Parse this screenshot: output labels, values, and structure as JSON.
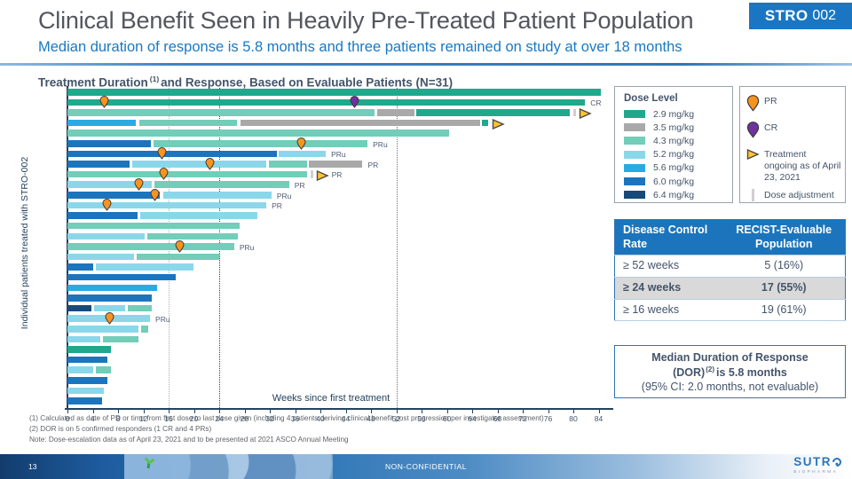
{
  "slide": {
    "title": "Clinical Benefit Seen in Heavily Pre-Treated Patient Population",
    "subtitle": "Median duration of response is 5.8 months and three patients remained on study at over 18 months",
    "badge": {
      "brand": "STRO",
      "number": "002"
    }
  },
  "chart_data": {
    "type": "bar",
    "subtype": "horizontal-swimmer-plot",
    "title_prefix": "Treatment Duration",
    "title_sup": "(1)",
    "title_suffix": "and Response, Based on Evaluable Patients (N=31)",
    "xlabel": "Weeks since first treatment",
    "ylabel": "Individual patients treated with STRO-002",
    "xlim": [
      0,
      86
    ],
    "x_ticks": [
      0,
      4,
      8,
      12,
      16,
      20,
      24,
      28,
      32,
      36,
      40,
      44,
      48,
      52,
      56,
      60,
      64,
      68,
      72,
      76,
      80,
      84
    ],
    "gridlines": [
      {
        "week": 16,
        "emphasis": "light"
      },
      {
        "week": 24,
        "emphasis": "dark"
      },
      {
        "week": 52,
        "emphasis": "mid"
      }
    ],
    "dose_colors": {
      "2.9": "#21a88c",
      "3.5": "#a9a9a9",
      "4.3": "#72cdb9",
      "5.2": "#8bd7ea",
      "5.6": "#29abe2",
      "6.0": "#1c75bc",
      "6.4": "#17497b"
    },
    "marker_colors": {
      "PR": "#f7941d",
      "CR": "#7030a0",
      "ongoing": "#ffc52f",
      "adjustment": "#d0cece"
    },
    "dose_levels": [
      {
        "dose": "2.9",
        "label": "2.9 mg/kg"
      },
      {
        "dose": "3.5",
        "label": "3.5 mg/kg"
      },
      {
        "dose": "4.3",
        "label": "4.3 mg/kg"
      },
      {
        "dose": "5.2",
        "label": "5.2 mg/kg"
      },
      {
        "dose": "5.6",
        "label": "5.6 mg/kg"
      },
      {
        "dose": "6.0",
        "label": "6.0 mg/kg"
      },
      {
        "dose": "6.4",
        "label": "6.4 mg/kg"
      }
    ],
    "legend_title": "Dose Level",
    "marker_legend": {
      "pr_label": "PR",
      "cr_label": "CR",
      "ongoing_label": "Treatment ongoing as of April 23, 2021",
      "adjustment_label": "Dose adjustment"
    },
    "patients": [
      {
        "segments": [
          {
            "dose": "2.9",
            "start": 0,
            "end": 84.5
          }
        ]
      },
      {
        "segments": [
          {
            "dose": "2.9",
            "start": 0,
            "end": 82
          }
        ],
        "markers": [
          {
            "type": "PR",
            "week": 5.8
          },
          {
            "type": "CR",
            "week": 45.4
          }
        ],
        "label": "CR"
      },
      {
        "segments": [
          {
            "dose": "4.3",
            "start": 0,
            "end": 48.7
          },
          {
            "dose": "3.5",
            "start": 49,
            "end": 55
          },
          {
            "dose": "2.9",
            "start": 55.2,
            "end": 79.6
          }
        ],
        "adjustments": [
          80
        ],
        "ongoing": true
      },
      {
        "segments": [
          {
            "dose": "5.6",
            "start": 0,
            "end": 11
          },
          {
            "dose": "4.3",
            "start": 11.3,
            "end": 27
          },
          {
            "dose": "3.5",
            "start": 27.3,
            "end": 65.4
          },
          {
            "dose": "2.9",
            "start": 65.6,
            "end": 66.6
          }
        ],
        "ongoing": true
      },
      {
        "segments": [
          {
            "dose": "4.3",
            "start": 0,
            "end": 60.5
          }
        ]
      },
      {
        "segments": [
          {
            "dose": "6.0",
            "start": 0,
            "end": 13.3
          },
          {
            "dose": "4.3",
            "start": 13.6,
            "end": 47.6
          }
        ],
        "markers": [
          {
            "type": "PR",
            "week": 37
          }
        ],
        "label": "PRu"
      },
      {
        "segments": [
          {
            "dose": "6.0",
            "start": 0,
            "end": 33.2
          },
          {
            "dose": "5.2",
            "start": 33.4,
            "end": 41
          }
        ],
        "markers": [
          {
            "type": "PR",
            "week": 15
          }
        ],
        "label": "PRu"
      },
      {
        "segments": [
          {
            "dose": "6.0",
            "start": 0,
            "end": 10
          },
          {
            "dose": "5.2",
            "start": 10.3,
            "end": 31.6
          },
          {
            "dose": "4.3",
            "start": 31.9,
            "end": 38
          },
          {
            "dose": "3.5",
            "start": 38.2,
            "end": 46.8
          }
        ],
        "markers": [
          {
            "type": "PR",
            "week": 22.5
          }
        ],
        "label": "PR"
      },
      {
        "segments": [
          {
            "dose": "4.3",
            "start": 0,
            "end": 38
          }
        ],
        "markers": [
          {
            "type": "PR",
            "week": 15.2
          }
        ],
        "adjustments": [
          38.4
        ],
        "ongoing": true,
        "label": "PR"
      },
      {
        "segments": [
          {
            "dose": "5.2",
            "start": 0,
            "end": 13.5
          },
          {
            "dose": "4.3",
            "start": 13.8,
            "end": 35.2
          }
        ],
        "markers": [
          {
            "type": "PR",
            "week": 11.3
          }
        ],
        "label": "PR"
      },
      {
        "segments": [
          {
            "dose": "6.0",
            "start": 0,
            "end": 14.8
          },
          {
            "dose": "5.2",
            "start": 15.1,
            "end": 32.4
          }
        ],
        "markers": [
          {
            "type": "PR",
            "week": 13.8
          }
        ],
        "label": "PRu"
      },
      {
        "segments": [
          {
            "dose": "5.2",
            "start": 0,
            "end": 31.6
          }
        ],
        "markers": [
          {
            "type": "PR",
            "week": 6.2
          }
        ],
        "label": "PR"
      },
      {
        "segments": [
          {
            "dose": "6.0",
            "start": 0,
            "end": 11.2
          },
          {
            "dose": "5.2",
            "start": 11.5,
            "end": 30.2
          }
        ]
      },
      {
        "segments": [
          {
            "dose": "4.3",
            "start": 0,
            "end": 27.3
          }
        ]
      },
      {
        "segments": [
          {
            "dose": "5.2",
            "start": 0,
            "end": 12.4
          },
          {
            "dose": "4.3",
            "start": 12.7,
            "end": 27.1
          }
        ]
      },
      {
        "segments": [
          {
            "dose": "4.3",
            "start": 0,
            "end": 26.5
          }
        ],
        "markers": [
          {
            "type": "PR",
            "week": 17.7
          }
        ],
        "label": "PRu"
      },
      {
        "segments": [
          {
            "dose": "5.2",
            "start": 0,
            "end": 10.7
          },
          {
            "dose": "4.3",
            "start": 11,
            "end": 24.2
          }
        ]
      },
      {
        "segments": [
          {
            "dose": "6.0",
            "start": 0,
            "end": 4.2
          },
          {
            "dose": "5.2",
            "start": 4.5,
            "end": 20
          }
        ]
      },
      {
        "segments": [
          {
            "dose": "6.0",
            "start": 0,
            "end": 17.2
          }
        ]
      },
      {
        "segments": [
          {
            "dose": "5.6",
            "start": 0,
            "end": 14.3
          }
        ]
      },
      {
        "segments": [
          {
            "dose": "6.0",
            "start": 0,
            "end": 13.5
          }
        ]
      },
      {
        "segments": [
          {
            "dose": "6.4",
            "start": 0,
            "end": 3.9
          },
          {
            "dose": "5.2",
            "start": 4.2,
            "end": 9.3
          },
          {
            "dose": "4.3",
            "start": 9.6,
            "end": 13.5
          }
        ]
      },
      {
        "segments": [
          {
            "dose": "5.2",
            "start": 0,
            "end": 13.2
          }
        ],
        "markers": [
          {
            "type": "PR",
            "week": 6.7
          }
        ],
        "label": "PRu"
      },
      {
        "segments": [
          {
            "dose": "5.2",
            "start": 0,
            "end": 11.3
          },
          {
            "dose": "4.3",
            "start": 11.6,
            "end": 12.9
          }
        ]
      },
      {
        "segments": [
          {
            "dose": "5.2",
            "start": 0,
            "end": 5.3
          },
          {
            "dose": "4.3",
            "start": 5.6,
            "end": 11.3
          }
        ]
      },
      {
        "segments": [
          {
            "dose": "2.9",
            "start": 0,
            "end": 7
          }
        ]
      },
      {
        "segments": [
          {
            "dose": "6.0",
            "start": 0,
            "end": 6.5
          }
        ]
      },
      {
        "segments": [
          {
            "dose": "5.2",
            "start": 0,
            "end": 4.2
          },
          {
            "dose": "4.3",
            "start": 4.5,
            "end": 7
          }
        ]
      },
      {
        "segments": [
          {
            "dose": "6.0",
            "start": 0,
            "end": 6.5
          }
        ]
      },
      {
        "segments": [
          {
            "dose": "5.2",
            "start": 0,
            "end": 5.9
          }
        ]
      },
      {
        "segments": [
          {
            "dose": "6.0",
            "start": 0,
            "end": 5.6
          }
        ]
      }
    ]
  },
  "table": {
    "headers": [
      "Disease Control Rate",
      "RECIST-Evaluable Population"
    ],
    "rows": [
      {
        "label": "≥ 52 weeks",
        "value": "5 (16%)",
        "highlight": false
      },
      {
        "label": "≥ 24 weeks",
        "value": "17 (55%)",
        "highlight": true
      },
      {
        "label": "≥ 16 weeks",
        "value": "19 (61%)",
        "highlight": false
      }
    ]
  },
  "dor_box": {
    "line1": "Median Duration of Response",
    "line2_pre": "(DOR)",
    "line2_sup": "(2)",
    "line2_post": "is 5.8 months",
    "line3": "(95% CI: 2.0 months, not evaluable)"
  },
  "footnotes": [
    "(1)  Calculated as date of PD or time from first dose to last dose given (including 4 patients deriving clinical benefit post progression per investigator assessment)",
    "(2)  DOR is on 5 confirmed responders (1 CR and 4 PRs)",
    "Note: Dose-escalation data as of April 23, 2021 and to be presented at 2021 ASCO Annual Meeting"
  ],
  "footer": {
    "page_number": "13",
    "classification": "NON-CONFIDENTIAL",
    "logo_top": "SUTR",
    "logo_bottom": "BIOPHARMA"
  }
}
